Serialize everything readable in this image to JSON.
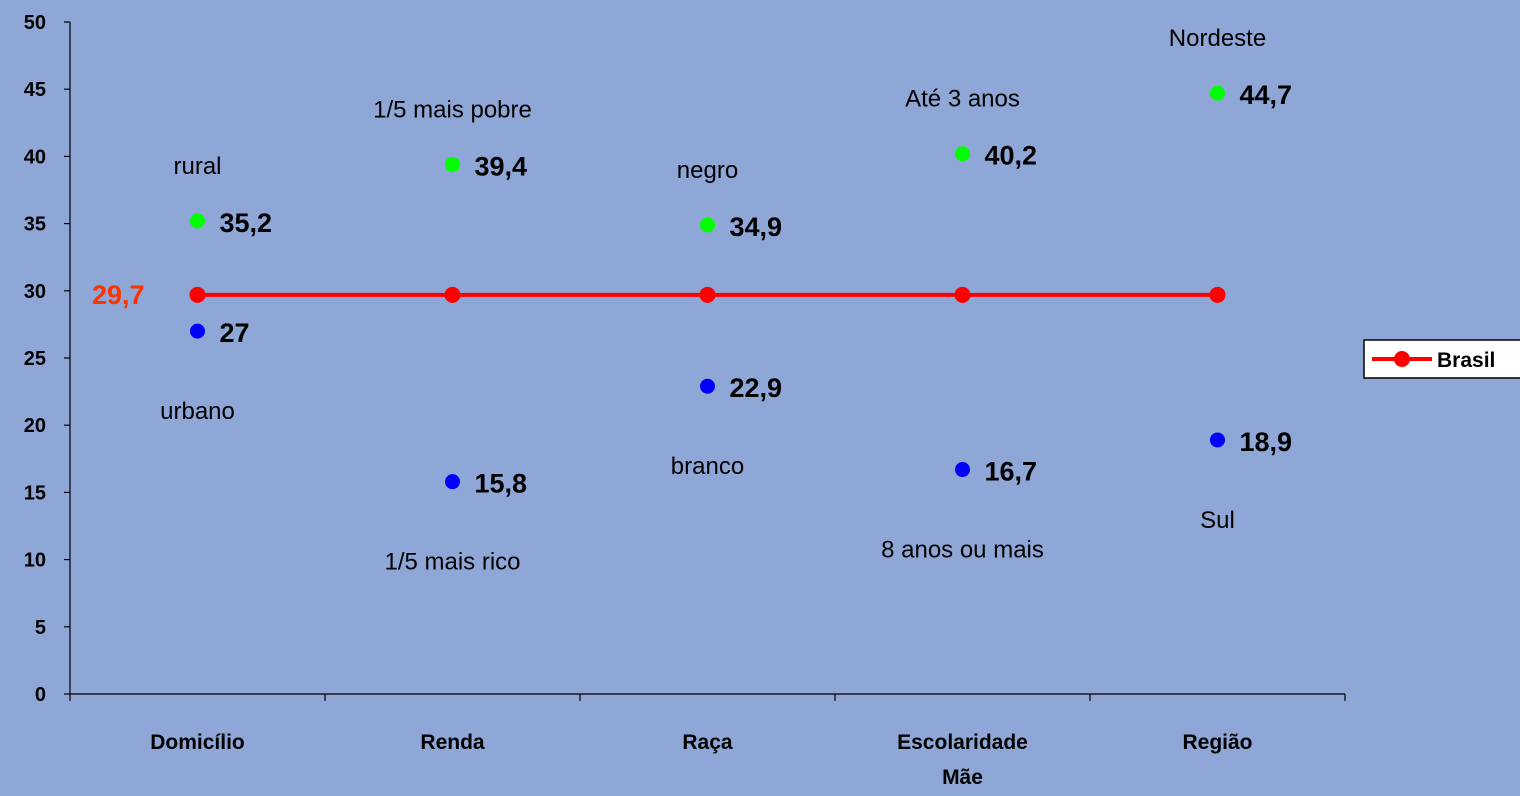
{
  "chart_data": {
    "type": "scatter",
    "title": "",
    "xlabel": "",
    "ylabel": "",
    "ylim": [
      0,
      50
    ],
    "yticks": [
      0,
      5,
      10,
      15,
      20,
      25,
      30,
      35,
      40,
      45,
      50
    ],
    "grid": false,
    "categories": [
      [
        "Domicílio"
      ],
      [
        "Renda"
      ],
      [
        "Raça"
      ],
      [
        "Escolaridade",
        "Mãe"
      ],
      [
        "Região"
      ]
    ],
    "series": [
      {
        "name": "Brasil",
        "kind": "line",
        "color": "#FF0000",
        "values": [
          29.7,
          29.7,
          29.7,
          29.7,
          29.7
        ],
        "annotation": "29,7",
        "annotation_color": "#FF3300"
      },
      {
        "kind": "points",
        "color": "#00FF00",
        "values": [
          35.2,
          39.4,
          34.9,
          40.2,
          44.7
        ],
        "value_labels": [
          "35,2",
          "39,4",
          "34,9",
          "40,2",
          "44,7"
        ],
        "point_labels": [
          "rural",
          "1/5 mais pobre",
          "negro",
          "Até 3 anos",
          "Nordeste"
        ]
      },
      {
        "kind": "points",
        "color": "#0000FF",
        "values": [
          27,
          15.8,
          22.9,
          16.7,
          18.9
        ],
        "value_labels": [
          "27",
          "15,8",
          "22,9",
          "16,7",
          "18,9"
        ],
        "point_labels": [
          "urbano",
          "1/5 mais rico",
          "branco",
          "8 anos ou mais",
          "Sul"
        ]
      }
    ],
    "legend": {
      "placement": "right",
      "entries": [
        {
          "label": "Brasil",
          "color": "#FF0000"
        }
      ]
    }
  }
}
